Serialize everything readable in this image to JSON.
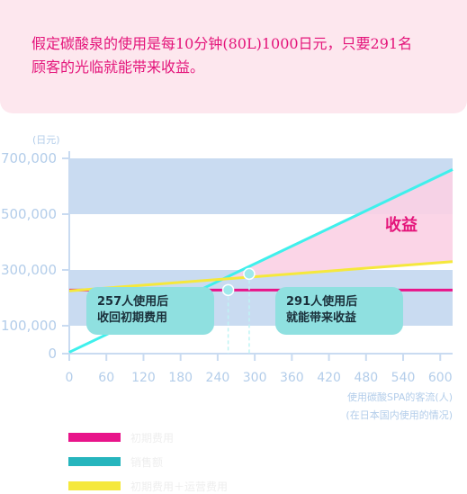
{
  "banner": {
    "line1": "假定碳酸泉的使用是每10分钟(80L)1000日元，只要291名",
    "line2": "顾客的光临就能带来收益。"
  },
  "chart_data": {
    "type": "line",
    "y_unit": "(日元)",
    "xlabel_line1": "使用碳酸SPA的客流(人)",
    "xlabel_line2": "(在日本国内使用的情况)",
    "xlim": [
      0,
      620
    ],
    "ylim": [
      0,
      700000
    ],
    "y_ticks": [
      "0",
      "100,000",
      "300,000",
      "500,000",
      "700,000"
    ],
    "y_tick_values": [
      0,
      100000,
      300000,
      500000,
      700000
    ],
    "x_ticks": [
      "0",
      "60",
      "120",
      "180",
      "240",
      "300",
      "360",
      "420",
      "480",
      "540",
      "600"
    ],
    "x_tick_values": [
      0,
      60,
      120,
      180,
      240,
      300,
      360,
      420,
      480,
      540,
      600
    ],
    "bands": [
      [
        100000,
        300000
      ],
      [
        500000,
        700000
      ]
    ],
    "series": [
      {
        "color": "#e8148a",
        "x": [
          0,
          620
        ],
        "y": [
          228000,
          228000
        ]
      },
      {
        "color": "#3ff0ec",
        "x": [
          0,
          620
        ],
        "y": [
          5000,
          660000
        ]
      },
      {
        "color": "#f5e83c",
        "x": [
          0,
          620
        ],
        "y": [
          225000,
          330000
        ]
      }
    ],
    "profit_label": "收益",
    "points": [
      {
        "x": 257,
        "y": 228000,
        "label_line1": "257人使用后",
        "label_line2": "收回初期费用"
      },
      {
        "x": 291,
        "y": 286000,
        "label_line1": "291人使用后",
        "label_line2": "就能带来收益"
      }
    ]
  },
  "legend": [
    {
      "color": "#e8148a",
      "label": "初期费用"
    },
    {
      "color": "#26b5bd",
      "label": "销售额"
    },
    {
      "color": "#f5e83c",
      "label": "初期费用＋运营费用"
    }
  ]
}
